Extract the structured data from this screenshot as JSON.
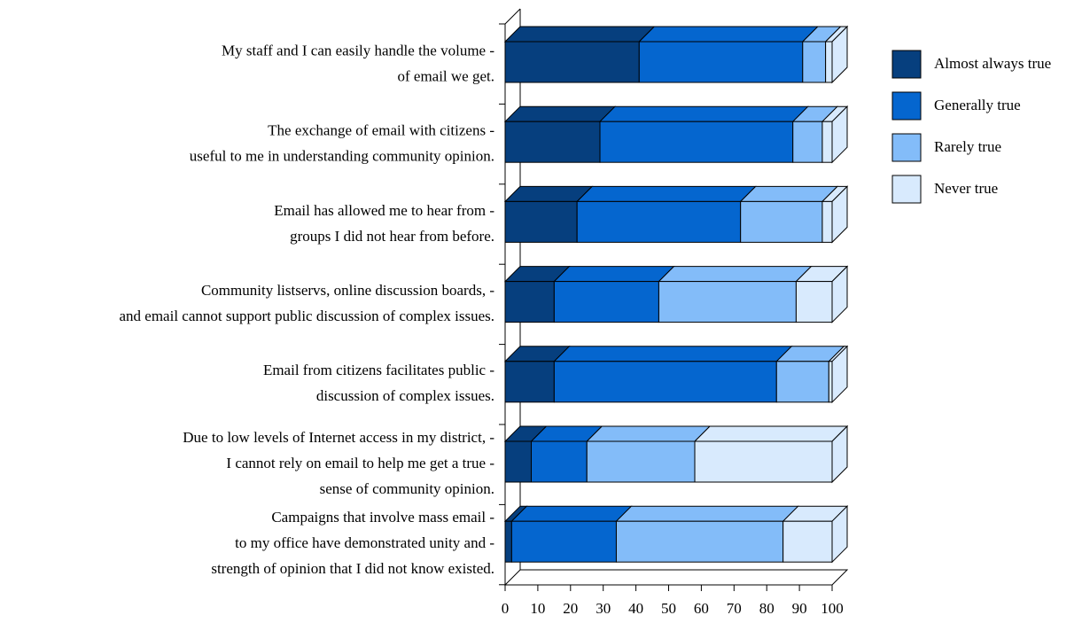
{
  "chart_data": {
    "type": "bar3d_stacked_horizontal",
    "categories": [
      [
        "My staff and I can easily handle the volume -",
        "of email we get."
      ],
      [
        "The exchange of email with citizens -",
        "useful to me in understanding community opinion."
      ],
      [
        "Email has allowed me to hear from -",
        "groups I did not hear from before."
      ],
      [
        "Community listservs, online discussion boards, -",
        "and email cannot support public discussion of complex issues."
      ],
      [
        "Email from citizens facilitates public -",
        "discussion of complex issues."
      ],
      [
        "Due to low levels of Internet access in my district, -",
        "I cannot rely on email to help me get a true -",
        "sense of community opinion."
      ],
      [
        "Campaigns that involve mass email -",
        "to my office have demonstrated unity and -",
        "strength of opinion that I did not know existed."
      ]
    ],
    "series": [
      {
        "name": "Almost always true",
        "color": "#063f7e",
        "values": [
          41,
          29,
          22,
          15,
          15,
          8,
          2
        ]
      },
      {
        "name": "Generally true",
        "color": "#0566cf",
        "values": [
          50,
          59,
          50,
          32,
          68,
          17,
          32
        ]
      },
      {
        "name": "Rarely true",
        "color": "#83bcf9",
        "values": [
          7,
          9,
          25,
          42,
          16,
          33,
          51
        ]
      },
      {
        "name": "Never true",
        "color": "#d8eafd",
        "values": [
          2,
          3,
          3,
          11,
          1,
          42,
          15
        ]
      }
    ],
    "xlim": [
      0,
      100
    ],
    "xticks": [
      0,
      10,
      20,
      30,
      40,
      50,
      60,
      70,
      80,
      90,
      100
    ],
    "legend": "right"
  }
}
